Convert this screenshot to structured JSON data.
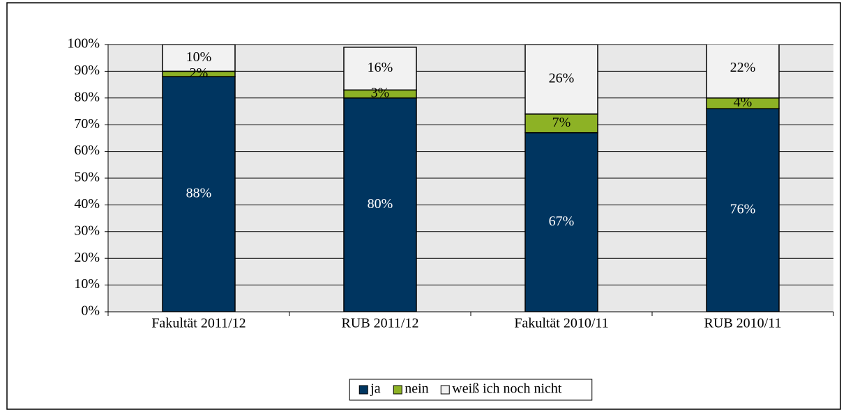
{
  "chart_data": {
    "type": "stacked_bar",
    "categories": [
      "Fakultät 2011/12",
      "RUB 2011/12",
      "Fakultät 2010/11",
      "RUB 2010/11"
    ],
    "series": [
      {
        "name": "ja",
        "color": "#003560",
        "label_color": "#ffffff",
        "values": [
          88,
          80,
          67,
          76
        ],
        "value_labels": [
          "88%",
          "80%",
          "67%",
          "76%"
        ]
      },
      {
        "name": "nein",
        "color": "#8db225",
        "label_color": "#000000",
        "values": [
          2,
          3,
          7,
          4
        ],
        "value_labels": [
          "2%",
          "3%",
          "7%",
          "4%"
        ]
      },
      {
        "name": "weiß ich noch nicht",
        "color": "#f2f2f2",
        "label_color": "#000000",
        "values": [
          10,
          16,
          26,
          22
        ],
        "value_labels": [
          "10%",
          "16%",
          "26%",
          "22%"
        ]
      }
    ],
    "ylim": [
      0,
      100
    ],
    "yticks": [
      {
        "value": 0,
        "label": "0%"
      },
      {
        "value": 10,
        "label": "10%"
      },
      {
        "value": 20,
        "label": "20%"
      },
      {
        "value": 30,
        "label": "30%"
      },
      {
        "value": 40,
        "label": "40%"
      },
      {
        "value": 50,
        "label": "50%"
      },
      {
        "value": 60,
        "label": "60%"
      },
      {
        "value": 70,
        "label": "70%"
      },
      {
        "value": 80,
        "label": "80%"
      },
      {
        "value": 90,
        "label": "90%"
      },
      {
        "value": 100,
        "label": "100%"
      }
    ],
    "grid": true,
    "legend": "bottom"
  }
}
